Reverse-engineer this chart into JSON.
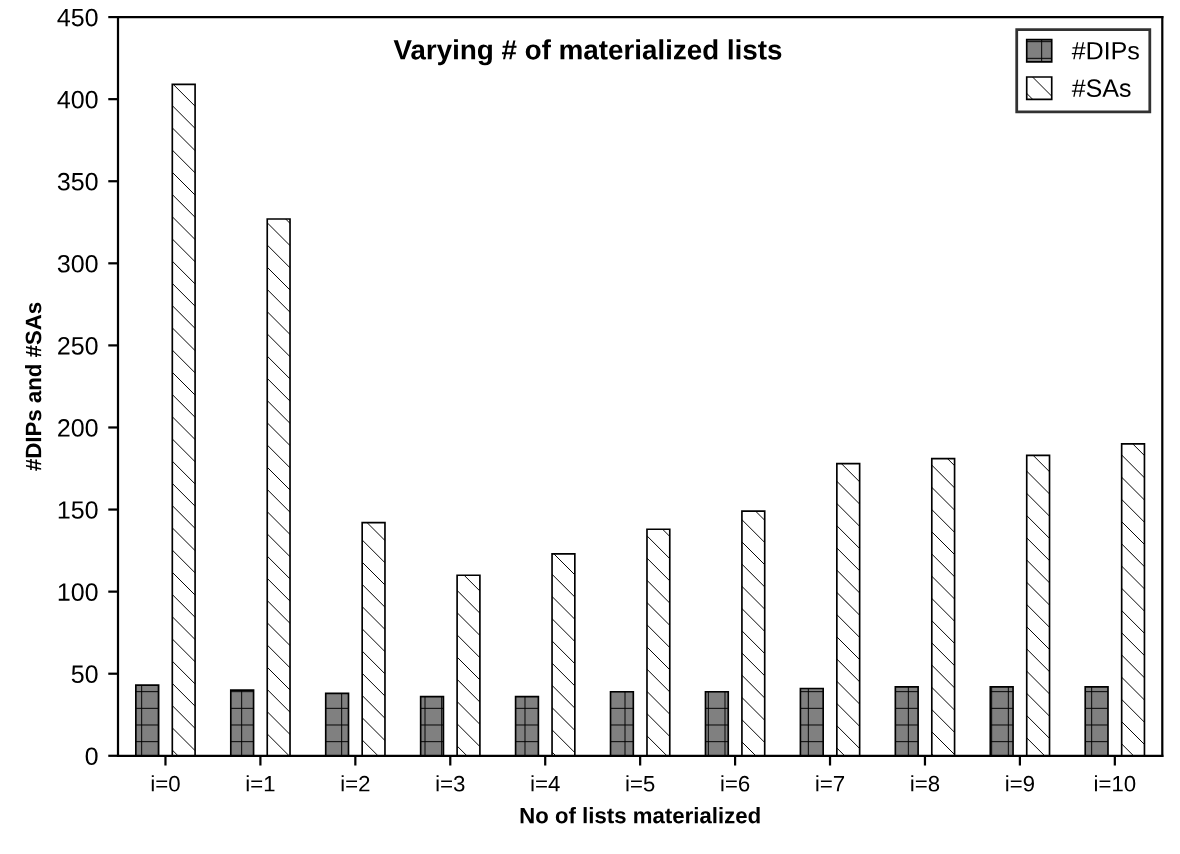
{
  "chart_data": {
    "type": "bar",
    "title": "Varying # of materialized lists",
    "xlabel": "No of lists materialized",
    "ylabel": "#DIPs and #SAs",
    "categories": [
      "i=0",
      "i=1",
      "i=2",
      "i=3",
      "i=4",
      "i=5",
      "i=6",
      "i=7",
      "i=8",
      "i=9",
      "i=10"
    ],
    "series": [
      {
        "name": "#DIPs",
        "color": "#808080",
        "values": [
          43,
          40,
          38,
          36,
          36,
          39,
          39,
          41,
          42,
          42,
          42
        ]
      },
      {
        "name": "#SAs",
        "color": "#ffffff",
        "values": [
          409,
          327,
          142,
          110,
          123,
          138,
          149,
          178,
          181,
          183,
          190
        ]
      }
    ],
    "ylim": [
      0,
      450
    ],
    "yticks": [
      0,
      50,
      100,
      150,
      200,
      250,
      300,
      350,
      400,
      450
    ],
    "grid": false,
    "legend": "top right"
  }
}
